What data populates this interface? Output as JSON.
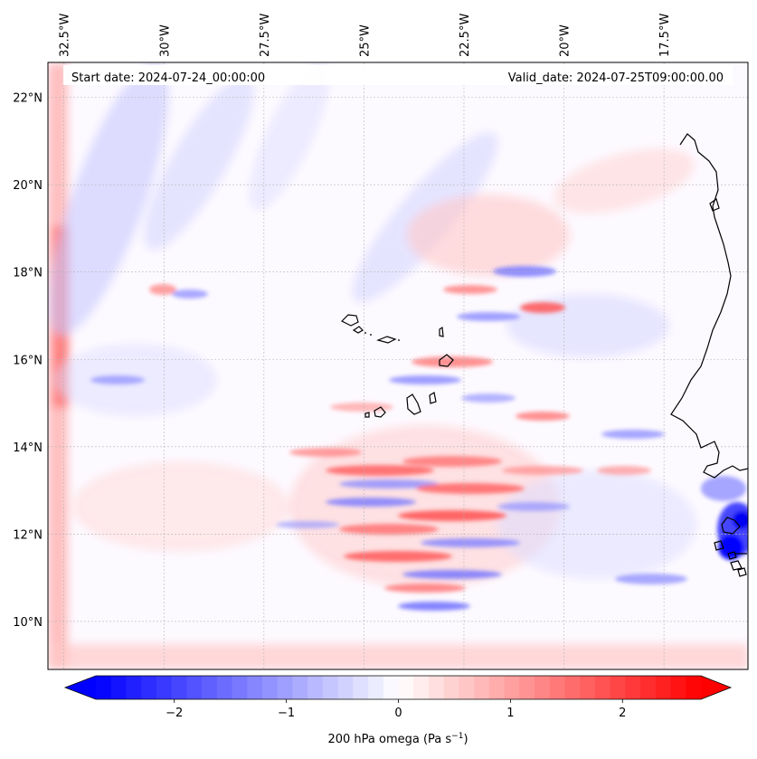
{
  "annotations": {
    "start_date": "Start date: 2024-07-24_00:00:00",
    "valid_date": "Valid_date: 2024-07-25T09:00:00.00"
  },
  "map": {
    "projection": "mercator-like",
    "lon_range": [
      -32.9,
      -15.4
    ],
    "lat_range": [
      8.9,
      22.8
    ],
    "lon_ticks": [
      {
        "value": -32.5,
        "label": "32.5°W"
      },
      {
        "value": -30.0,
        "label": "30°W"
      },
      {
        "value": -27.5,
        "label": "27.5°W"
      },
      {
        "value": -25.0,
        "label": "25°W"
      },
      {
        "value": -22.5,
        "label": "22.5°W"
      },
      {
        "value": -20.0,
        "label": "20°W"
      },
      {
        "value": -17.5,
        "label": "17.5°W"
      }
    ],
    "lat_ticks": [
      {
        "value": 22,
        "label": "22°N"
      },
      {
        "value": 20,
        "label": "20°N"
      },
      {
        "value": 18,
        "label": "18°N"
      },
      {
        "value": 16,
        "label": "16°N"
      },
      {
        "value": 14,
        "label": "14°N"
      },
      {
        "value": 12,
        "label": "12°N"
      },
      {
        "value": 10,
        "label": "10°N"
      }
    ],
    "gridlines": true,
    "coastline_color": "#000000",
    "field": "200 hPa omega",
    "units": "Pa s-1"
  },
  "colorbar": {
    "label_main": "200 hPa omega (Pa s",
    "label_sup": "−1",
    "label_close": ")",
    "vmin": -2.7,
    "vmax": 2.7,
    "ticks": [
      {
        "value": -2,
        "label": "−2"
      },
      {
        "value": -1,
        "label": "−1"
      },
      {
        "value": 0,
        "label": "0"
      },
      {
        "value": 1,
        "label": "1"
      },
      {
        "value": 2,
        "label": "2"
      }
    ],
    "cmap": "bwr",
    "color_low": "#0000ff",
    "color_mid": "#ffffff",
    "color_high": "#ff0000",
    "extend": "both",
    "levels": 40
  }
}
